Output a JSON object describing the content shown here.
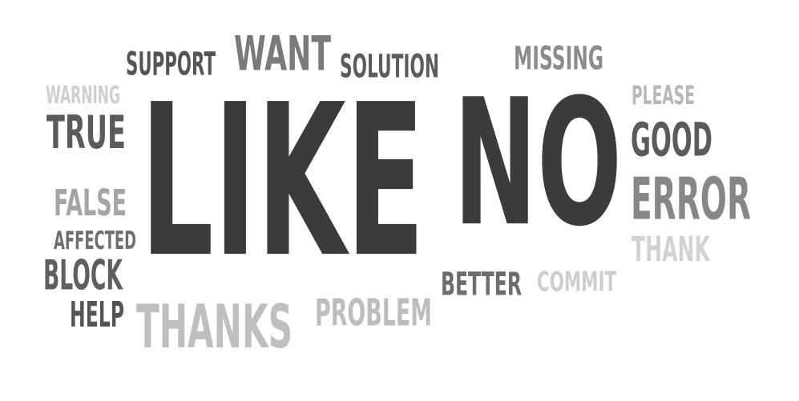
{
  "words": [
    {
      "id": "support",
      "text": "SUPPORT",
      "color": "#555555"
    },
    {
      "id": "want",
      "text": "WANT",
      "color": "#7a7a7a"
    },
    {
      "id": "solution",
      "text": "SOLUTION",
      "color": "#5c5c5c"
    },
    {
      "id": "missing",
      "text": "MISSING",
      "color": "#8c8c8c"
    },
    {
      "id": "warning",
      "text": "WARNING",
      "color": "#cfcfcf"
    },
    {
      "id": "please",
      "text": "PLEASE",
      "color": "#b8b8b8"
    },
    {
      "id": "true",
      "text": "TRUE",
      "color": "#5b5b5b"
    },
    {
      "id": "like",
      "text": "LIKE",
      "color": "#3b3b3b"
    },
    {
      "id": "no",
      "text": "NO",
      "color": "#3b3b3b"
    },
    {
      "id": "good",
      "text": "GOOD",
      "color": "#5a5a5a"
    },
    {
      "id": "false",
      "text": "FALSE",
      "color": "#a5a5a5"
    },
    {
      "id": "error",
      "text": "ERROR",
      "color": "#878787"
    },
    {
      "id": "affected",
      "text": "AFFECTED",
      "color": "#6f6f6f"
    },
    {
      "id": "thank",
      "text": "THANK",
      "color": "#d2d2d2"
    },
    {
      "id": "block",
      "text": "BLOCK",
      "color": "#5f5f5f"
    },
    {
      "id": "better",
      "text": "BETTER",
      "color": "#6d6d6d"
    },
    {
      "id": "commit",
      "text": "COMMIT",
      "color": "#cdcdcd"
    },
    {
      "id": "help",
      "text": "HELP",
      "color": "#555555"
    },
    {
      "id": "thanks",
      "text": "THANKS",
      "color": "#bfbfbf"
    },
    {
      "id": "problem",
      "text": "PROBLEM",
      "color": "#bdbdbd"
    }
  ]
}
